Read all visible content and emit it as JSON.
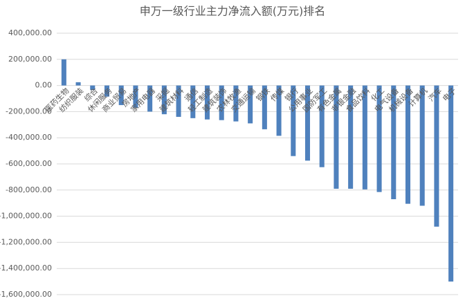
{
  "chart_data": {
    "type": "bar",
    "title": "申万一级行业主力净流入额(万元)排名",
    "categories": [
      "医药生物",
      "纺织服装",
      "综合",
      "休闲服务",
      "商业贸易",
      "房地产",
      "家用电器",
      "采掘",
      "建筑材料",
      "通信",
      "轻工制造",
      "建筑装饰",
      "农林牧渔",
      "交通运输",
      "钢铁",
      "传媒",
      "银行",
      "公用事业",
      "国防军工",
      "有色金属",
      "非银金融",
      "食品饮料",
      "化工",
      "电气设备",
      "机械设备",
      "计算机",
      "汽车",
      "电子"
    ],
    "values": [
      200000,
      25000,
      -35000,
      -85000,
      -150000,
      -170000,
      -200000,
      -220000,
      -240000,
      -250000,
      -260000,
      -265000,
      -275000,
      -290000,
      -335000,
      -385000,
      -540000,
      -575000,
      -625000,
      -790000,
      -790000,
      -795000,
      -815000,
      -870000,
      -905000,
      -920000,
      -1080000,
      -1500000
    ],
    "color": "#4f81bd",
    "ylim": [
      -1600000,
      400000
    ],
    "yticks": [
      {
        "value": -1600000,
        "label": "-1,600,000.00"
      },
      {
        "value": -1400000,
        "label": "-1,400,000.00"
      },
      {
        "value": -1200000,
        "label": "-1,200,000.00"
      },
      {
        "value": -1000000,
        "label": "-1,000,000.00"
      },
      {
        "value": -800000,
        "label": "-800,000.00"
      },
      {
        "value": -600000,
        "label": "-600,000.00"
      },
      {
        "value": -400000,
        "label": "-400,000.00"
      },
      {
        "value": -200000,
        "label": "-200,000.00"
      },
      {
        "value": 0,
        "label": "0.00"
      },
      {
        "value": 200000,
        "label": "200,000.00"
      },
      {
        "value": 400000,
        "label": "400,000.00"
      }
    ],
    "grid": true
  }
}
